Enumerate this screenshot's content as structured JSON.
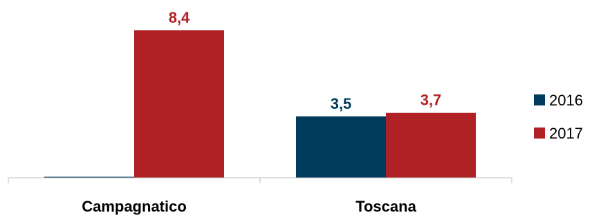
{
  "chart_data": {
    "type": "bar",
    "categories": [
      "Campagnatico",
      "Toscana"
    ],
    "series": [
      {
        "name": "2016",
        "values": [
          0,
          3.5
        ],
        "labels": [
          "",
          "3,5"
        ]
      },
      {
        "name": "2017",
        "values": [
          8.4,
          3.7
        ],
        "labels": [
          "8,4",
          "3,7"
        ]
      }
    ],
    "title": "",
    "xlabel": "",
    "ylabel": "",
    "ylim": [
      0,
      9.1
    ],
    "grid": false,
    "legend_position": "right",
    "colors": {
      "2016": "#003a5c",
      "2017": "#b02125"
    }
  }
}
